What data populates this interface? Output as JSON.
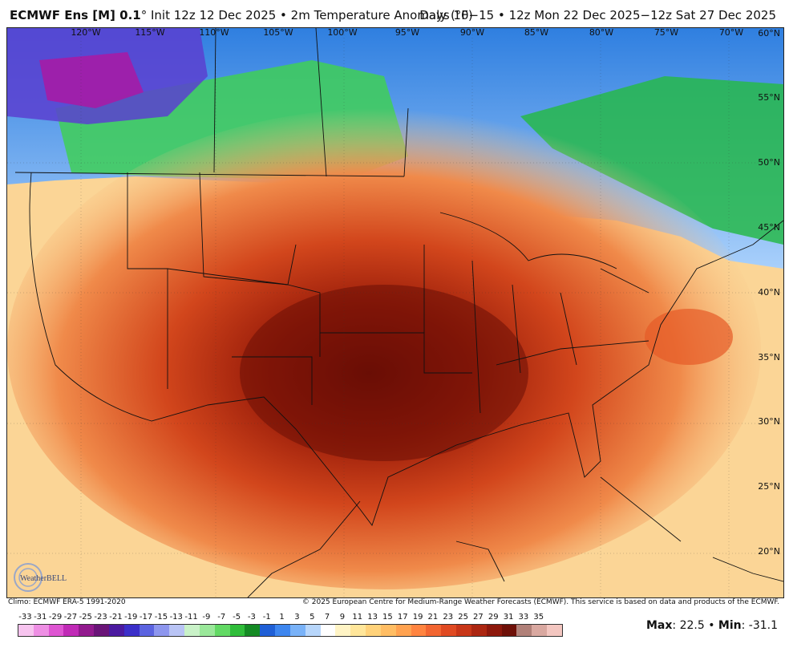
{
  "header": {
    "model": "ECMWF Ens [M] 0.1",
    "init": "° Init 12z 12 Dec 2025 • 2m Temperature Anomaly (°F)",
    "valid": "Days 10−15 • 12z Mon 22 Dec 2025−12z Sat 27 Dec 2025"
  },
  "map": {
    "lon_labels": [
      "120°W",
      "115°W",
      "110°W",
      "105°W",
      "100°W",
      "95°W",
      "90°W",
      "85°W",
      "80°W",
      "75°W",
      "70°W"
    ],
    "lat_labels": [
      "60°N",
      "55°N",
      "50°N",
      "45°N",
      "40°N",
      "35°N",
      "30°N",
      "25°N",
      "20°N"
    ]
  },
  "footer": {
    "climo": "Climo: ECMWF ERA-5 1991-2020",
    "copyright": "© 2025 European Centre for Medium-Range Weather Forecasts (ECMWF). This service is based on data and products of the ECMWF."
  },
  "logo": {
    "text": "WeatherBELL"
  },
  "scale": {
    "labels": [
      "-33",
      "-31",
      "-29",
      "-27",
      "-25",
      "-23",
      "-21",
      "-19",
      "-17",
      "-15",
      "-13",
      "-11",
      "-9",
      "-7",
      "-5",
      "-3",
      "-1",
      "1",
      "3",
      "5",
      "7",
      "9",
      "11",
      "13",
      "15",
      "17",
      "19",
      "21",
      "23",
      "25",
      "27",
      "29",
      "31",
      "33",
      "35"
    ],
    "colors": [
      "#f7c4ef",
      "#ee8fe4",
      "#de55d2",
      "#c02ab6",
      "#921a8e",
      "#6a1478",
      "#4b1aa0",
      "#3b2fc9",
      "#5b63e0",
      "#8d96ee",
      "#b9c4f5",
      "#c9f2c8",
      "#9ae89a",
      "#62d964",
      "#2fbd3a",
      "#148a24",
      "#1f5fd6",
      "#3d86ef",
      "#79b2f8",
      "#b7d6fb",
      "#ffffff",
      "#fff4c5",
      "#ffe69a",
      "#ffd27a",
      "#ffbd63",
      "#ffa250",
      "#ff8440",
      "#f26531",
      "#e04a22",
      "#c83618",
      "#ac2611",
      "#8d180c",
      "#6e1008",
      "#b08078",
      "#d9a8a0",
      "#f3c6c0"
    ]
  },
  "stats": {
    "max_label": "Max",
    "max_value": ": 22.5 • ",
    "min_label": "Min",
    "min_value": ": -31.1"
  }
}
